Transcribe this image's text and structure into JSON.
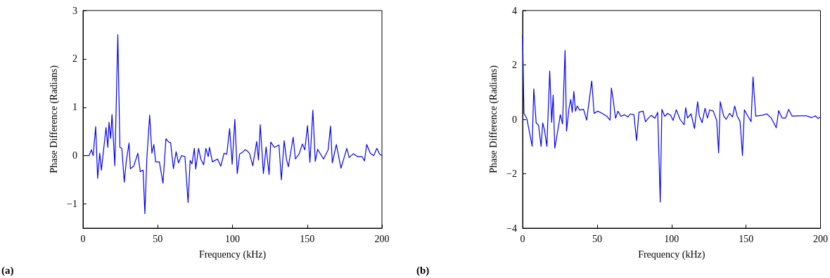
{
  "chart_data": [
    {
      "type": "line",
      "xlabel": "Frequency (kHz)",
      "ylabel": "Phase Difference (Radians)",
      "annotations": [
        "(a)"
      ],
      "xlim": [
        0,
        200
      ],
      "xticks": [
        0,
        50,
        100,
        150,
        200
      ],
      "ylim": [
        -1.5,
        3
      ],
      "yticks": [
        {
          "value": -1,
          "label": "−1"
        },
        0,
        1,
        2,
        3
      ],
      "marker": "none",
      "line_style": "solid",
      "series": [
        {
          "color": "#0000ff",
          "x": [
            0,
            4,
            5.6,
            6.8,
            8.5,
            9.8,
            11.2,
            12.3,
            15.4,
            16.6,
            17.4,
            18.5,
            19.4,
            21.3,
            23.3,
            24.7,
            26,
            27.6,
            28.9,
            30.8,
            31.7,
            33.9,
            36.7,
            38.3,
            40.2,
            41.4,
            42.7,
            44.6,
            46.1,
            47.4,
            48.6,
            51.1,
            53.5,
            55.5,
            57.4,
            58.6,
            60.5,
            62.3,
            63.9,
            65.9,
            68.2,
            70.3,
            71.7,
            72.9,
            74.5,
            75.4,
            77.3,
            78.8,
            80.7,
            82.2,
            83.8,
            84.6,
            86.6,
            90,
            92.2,
            94.4,
            96.2,
            98.1,
            99.8,
            101.6,
            103.2,
            104.8,
            106.8,
            108.4,
            109.9,
            111.5,
            113.6,
            116.2,
            117.4,
            118.6,
            120.7,
            122.5,
            124.5,
            125.6,
            128,
            131.1,
            132.7,
            134.6,
            136.2,
            137.4,
            140.6,
            142.1,
            144.5,
            146.8,
            148.4,
            150.2,
            151.8,
            153.8,
            155.4,
            157,
            160.9,
            164,
            165.6,
            166.8,
            169.5,
            172.6,
            176.5,
            178.1,
            180.9,
            183.6,
            186.7,
            188.3,
            189.8,
            192.2,
            194.5,
            196.6,
            198.4,
            200
          ],
          "values": [
            0,
            0,
            0.12,
            0,
            0.6,
            -0.47,
            0.05,
            -0.3,
            0.58,
            0.17,
            0.69,
            0.36,
            0.85,
            -0.21,
            2.5,
            0.17,
            0.15,
            -0.55,
            -0.13,
            0.26,
            -0.27,
            -0.22,
            0.05,
            -0.33,
            -0.3,
            -1.2,
            -0.07,
            0.84,
            0.05,
            0.23,
            -0.13,
            -0.13,
            -0.57,
            0.35,
            0.28,
            0.27,
            -0.27,
            0.08,
            -0.15,
            0,
            -0.02,
            -0.97,
            -0.1,
            -0.17,
            0.15,
            -0.28,
            0.15,
            -0.07,
            -0.19,
            0.15,
            -0.02,
            0.17,
            -0.13,
            -0.07,
            -0.22,
            0.05,
            0.03,
            0.56,
            -0.18,
            0.75,
            -0.37,
            0.03,
            0.07,
            0.12,
            0.1,
            0.04,
            -0.21,
            0.29,
            -0.09,
            0.64,
            -0.37,
            0.18,
            -0.39,
            0.28,
            0.17,
            0.22,
            -0.5,
            0.31,
            -0.09,
            -0.23,
            0.38,
            -0.07,
            0.03,
            0.24,
            0.12,
            0.62,
            -0.14,
            0.94,
            -0.12,
            0.13,
            -0.07,
            0.12,
            0.61,
            -0.15,
            0.23,
            -0.26,
            0.15,
            -0.04,
            0.04,
            -0.02,
            -0.02,
            -0.11,
            0.23,
            0.05,
            0,
            0.15,
            0.03,
            0
          ]
        }
      ]
    },
    {
      "type": "line",
      "xlabel": "Frequency (kHz)",
      "ylabel": "Phase Difference (Radians)",
      "annotations": [
        "(b)"
      ],
      "xlim": [
        0,
        200
      ],
      "xticks": [
        0,
        50,
        100,
        150,
        200
      ],
      "ylim": [
        -4,
        4
      ],
      "yticks": [
        {
          "value": -4,
          "label": "−4"
        },
        {
          "value": -2,
          "label": "−2"
        },
        0,
        2,
        4
      ],
      "marker": "none",
      "line_style": "solid",
      "series": [
        {
          "color": "#0000ff",
          "x": [
            0,
            0.9,
            2.8,
            6.4,
            7.5,
            9.1,
            10.7,
            12.4,
            13.5,
            14.7,
            16.3,
            18.2,
            19.5,
            20.5,
            21.6,
            24.2,
            25.3,
            26.8,
            28.5,
            29.5,
            31.1,
            32.3,
            33.3,
            34.4,
            35.5,
            36.7,
            38.3,
            40.9,
            43,
            46.4,
            48,
            50.4,
            53.5,
            56.6,
            58.7,
            59.6,
            60.9,
            62.4,
            64,
            66,
            68.4,
            70.7,
            72.3,
            74.7,
            76.5,
            78.1,
            80.9,
            82.5,
            84.4,
            86.4,
            88.8,
            90.7,
            92.4,
            93.5,
            95.4,
            97.4,
            99.4,
            101,
            103.2,
            105.7,
            108.4,
            109.5,
            110.7,
            113.1,
            115.4,
            117.5,
            118.6,
            120.5,
            122.5,
            124.1,
            125.6,
            128,
            130.3,
            131.6,
            132.7,
            135,
            136.6,
            139,
            140.9,
            142.4,
            144,
            146,
            147.6,
            148.9,
            151.5,
            153.4,
            154.7,
            156.5,
            160.9,
            164,
            166.9,
            170.3,
            171.9,
            174.2,
            176.6,
            178.6,
            180.9,
            186,
            190.7,
            193.8,
            196.6,
            198.4,
            200
          ],
          "values": [
            3.1,
            0.22,
            0.04,
            -0.99,
            1.12,
            -0.13,
            -0.22,
            -0.99,
            -0.13,
            -0.39,
            -0.99,
            1.78,
            -0.11,
            0.89,
            -1.06,
            -0.22,
            0.17,
            -0.17,
            2.53,
            -0.43,
            0.39,
            0.73,
            0.26,
            1.03,
            0.3,
            0.49,
            0.34,
            0.37,
            -0.03,
            1.41,
            0.22,
            0.3,
            0.22,
            0.11,
            -0.03,
            1.15,
            0.69,
            0.04,
            0.3,
            0.11,
            0.17,
            0.09,
            0.2,
            0.17,
            -0.78,
            0.26,
            0.3,
            -0.09,
            0.04,
            0.15,
            0.04,
            0.26,
            -3.04,
            0.37,
            0.11,
            0.22,
            0.15,
            -0.04,
            0.35,
            0,
            -0.2,
            0.43,
            0.05,
            0.2,
            -0.34,
            0.65,
            0.13,
            -0.12,
            0.41,
            0.05,
            0.35,
            0.3,
            -0.04,
            -1.23,
            0.65,
            0.12,
            0,
            0.22,
            0.09,
            0.49,
            0.13,
            -0.08,
            -1.33,
            0.35,
            0.09,
            -0.08,
            1.56,
            0.12,
            0.15,
            0.2,
            0.05,
            -0.31,
            0.32,
            0.05,
            0.05,
            0.37,
            0.12,
            0.13,
            0.13,
            0.06,
            0.13,
            0.03,
            0.09
          ]
        }
      ]
    }
  ]
}
